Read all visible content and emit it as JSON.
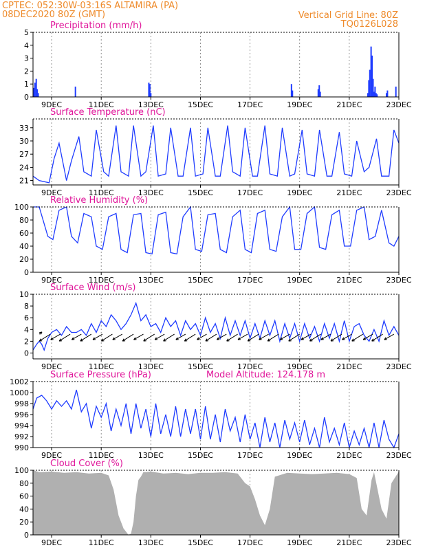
{
  "header": {
    "line1_left": "CPTEC:   052:30W-03:16S   ALTAMIRA (PA)",
    "line2_left": "08DEC2020 80Z (GMT)",
    "line2_right": "Vertical Grid Line: 80Z",
    "line3_right": "TQ0126L028"
  },
  "x_ticks": [
    "9DEC",
    "11DEC",
    "13DEC",
    "15DEC",
    "17DEC",
    "19DEC",
    "21DEC",
    "23DEC"
  ],
  "colors": {
    "header": "#ee8a2a",
    "title": "#e0169a",
    "series": "#1f3cff",
    "cloud": "#b0b0b0"
  },
  "chart_data": [
    {
      "id": "precip",
      "type": "bar",
      "title": "Precipitation (mm/h)",
      "ylim": [
        0,
        5
      ],
      "yticks": [
        0,
        1,
        2,
        3,
        4,
        5
      ],
      "x_unit": "days since 08DEC2020 00Z",
      "xlim": [
        0.25,
        15.0
      ],
      "x": [
        0.29,
        0.33,
        0.38,
        0.42,
        0.46,
        1.96,
        4.92,
        4.96,
        5.0,
        10.67,
        10.71,
        11.75,
        11.79,
        11.83,
        13.75,
        13.79,
        13.83,
        13.88,
        13.92,
        13.96,
        14.0,
        14.04,
        14.08,
        14.12,
        14.5,
        14.54,
        14.88
      ],
      "values": [
        0.7,
        1.1,
        1.4,
        0.6,
        0.3,
        0.8,
        1.1,
        1.0,
        0.3,
        1.0,
        0.5,
        0.6,
        0.9,
        0.4,
        0.3,
        1.3,
        2.1,
        3.9,
        3.2,
        1.4,
        0.4,
        0.8,
        0.3,
        0.2,
        0.3,
        0.5,
        0.8
      ]
    },
    {
      "id": "temp",
      "type": "line",
      "title": "Surface Temperature (nC)",
      "ylim": [
        20,
        35
      ],
      "yticks": [
        21,
        24,
        27,
        30,
        33
      ],
      "x_unit": "days since 08DEC2020 00Z",
      "xlim": [
        0.25,
        15.0
      ],
      "series": [
        {
          "name": "",
          "x": [
            0.25,
            0.5,
            0.9,
            1.1,
            1.3,
            1.6,
            1.8,
            2.1,
            2.3,
            2.6,
            2.8,
            3.1,
            3.3,
            3.6,
            3.8,
            4.1,
            4.3,
            4.6,
            4.8,
            5.1,
            5.3,
            5.6,
            5.8,
            6.1,
            6.3,
            6.6,
            6.8,
            7.1,
            7.3,
            7.6,
            7.8,
            8.1,
            8.3,
            8.6,
            8.8,
            9.1,
            9.3,
            9.6,
            9.8,
            10.1,
            10.3,
            10.6,
            10.8,
            11.1,
            11.3,
            11.6,
            11.8,
            12.1,
            12.3,
            12.6,
            12.8,
            13.1,
            13.3,
            13.6,
            13.8,
            14.1,
            14.3,
            14.6,
            14.8,
            15.0
          ],
          "values": [
            22,
            21,
            20.5,
            26,
            29.5,
            21,
            25.5,
            31,
            23,
            22,
            32.5,
            23,
            22,
            33.5,
            23,
            22,
            33.5,
            22,
            23,
            33.5,
            22,
            22.5,
            33,
            22,
            22,
            33,
            22,
            22.5,
            33,
            22,
            22,
            33.5,
            23,
            22,
            33,
            22,
            22,
            33.5,
            22.5,
            22,
            33,
            22,
            22.5,
            32.5,
            22.5,
            22,
            32.5,
            22,
            22,
            32,
            22.5,
            22,
            30,
            23,
            24,
            30.5,
            22,
            22,
            32.5,
            29.5
          ]
        }
      ]
    },
    {
      "id": "rh",
      "type": "line",
      "title": "Relative Humidity (%)",
      "ylim": [
        0,
        100
      ],
      "yticks": [
        0,
        20,
        40,
        60,
        80,
        100
      ],
      "x_unit": "days since 08DEC2020 00Z",
      "xlim": [
        0.25,
        15.0
      ],
      "series": [
        {
          "name": "",
          "x": [
            0.25,
            0.5,
            0.85,
            1.05,
            1.3,
            1.6,
            1.8,
            2.05,
            2.3,
            2.6,
            2.8,
            3.05,
            3.3,
            3.6,
            3.8,
            4.05,
            4.3,
            4.6,
            4.8,
            5.05,
            5.3,
            5.6,
            5.8,
            6.05,
            6.3,
            6.6,
            6.8,
            7.05,
            7.3,
            7.6,
            7.8,
            8.05,
            8.3,
            8.6,
            8.8,
            9.05,
            9.3,
            9.6,
            9.8,
            10.05,
            10.3,
            10.6,
            10.8,
            11.05,
            11.3,
            11.6,
            11.8,
            12.05,
            12.3,
            12.6,
            12.8,
            13.05,
            13.3,
            13.6,
            13.8,
            14.05,
            14.3,
            14.6,
            14.8,
            15.0
          ],
          "values": [
            100,
            100,
            55,
            50,
            95,
            100,
            55,
            45,
            90,
            85,
            40,
            35,
            85,
            90,
            35,
            30,
            88,
            90,
            30,
            28,
            88,
            92,
            30,
            28,
            85,
            100,
            35,
            32,
            88,
            90,
            35,
            30,
            85,
            95,
            35,
            30,
            90,
            95,
            35,
            32,
            85,
            100,
            35,
            35,
            90,
            100,
            38,
            35,
            88,
            95,
            40,
            40,
            95,
            100,
            50,
            55,
            95,
            45,
            40,
            55
          ]
        }
      ]
    },
    {
      "id": "wind",
      "type": "line",
      "title": "Surface Wind (m/s)",
      "ylim": [
        -1,
        10
      ],
      "yticks": [
        0,
        2,
        4,
        6,
        8,
        10
      ],
      "x_unit": "days since 08DEC2020 00Z",
      "xlim": [
        0.25,
        15.0
      ],
      "series": [
        {
          "name": "",
          "x": [
            0.25,
            0.4,
            0.5,
            0.6,
            0.7,
            0.85,
            1.0,
            1.2,
            1.4,
            1.6,
            1.8,
            2.0,
            2.2,
            2.4,
            2.6,
            2.8,
            3.0,
            3.2,
            3.4,
            3.6,
            3.8,
            4.0,
            4.2,
            4.4,
            4.6,
            4.8,
            5.0,
            5.2,
            5.4,
            5.6,
            5.8,
            6.0,
            6.2,
            6.4,
            6.6,
            6.8,
            7.0,
            7.2,
            7.4,
            7.6,
            7.8,
            8.0,
            8.2,
            8.4,
            8.6,
            8.8,
            9.0,
            9.2,
            9.4,
            9.6,
            9.8,
            10.0,
            10.2,
            10.4,
            10.6,
            10.8,
            11.0,
            11.2,
            11.4,
            11.6,
            11.8,
            12.0,
            12.2,
            12.4,
            12.6,
            12.8,
            13.0,
            13.2,
            13.4,
            13.6,
            13.8,
            14.0,
            14.2,
            14.4,
            14.6,
            14.8,
            15.0
          ],
          "values": [
            0.5,
            1.5,
            2.0,
            1.5,
            0.5,
            2.5,
            3.5,
            4.0,
            3.0,
            4.5,
            3.5,
            3.5,
            4.0,
            3.0,
            5.0,
            3.5,
            5.5,
            4.5,
            6.5,
            5.5,
            4.0,
            5.0,
            6.5,
            8.5,
            5.5,
            6.5,
            4.5,
            5.0,
            3.5,
            6.0,
            4.5,
            5.5,
            3.0,
            5.5,
            4.0,
            5.0,
            3.0,
            6.0,
            3.5,
            5.0,
            2.5,
            6.0,
            3.0,
            5.5,
            3.0,
            5.5,
            2.5,
            5.0,
            2.5,
            5.5,
            3.0,
            5.5,
            2.0,
            5.0,
            2.5,
            5.0,
            2.0,
            5.0,
            2.5,
            4.5,
            2.0,
            5.0,
            2.5,
            5.0,
            2.0,
            5.5,
            2.0,
            4.5,
            5.0,
            3.0,
            2.0,
            4.0,
            2.0,
            5.5,
            3.0,
            4.5,
            3.0
          ]
        }
      ],
      "wind_vectors": {
        "x": [
          0.5,
          0.95,
          1.35,
          1.75,
          2.2,
          2.6,
          3.05,
          3.45,
          3.85,
          4.3,
          4.7,
          5.15,
          5.55,
          5.95,
          6.4,
          6.8,
          7.25,
          7.65,
          8.05,
          8.5,
          8.9,
          9.35,
          9.75,
          10.15,
          10.6,
          11.0,
          11.45,
          11.85,
          12.25,
          12.7,
          13.1,
          13.55,
          13.95,
          14.35,
          14.8
        ],
        "u": [
          1.0,
          -4.0,
          -3.5,
          -4.0,
          -3.5,
          -4.0,
          -3.5,
          -4.0,
          -3.5,
          -4.0,
          -3.5,
          -4.0,
          -3.5,
          -4.0,
          -3.5,
          -4.0,
          -3.5,
          -4.0,
          -3.5,
          -4.0,
          -3.5,
          -4.0,
          -3.5,
          -4.0,
          -3.5,
          -4.0,
          -3.5,
          -4.0,
          -3.5,
          -4.0,
          -3.5,
          -4.0,
          -3.5,
          -4.0,
          -3.5
        ],
        "v": [
          0.8,
          -2.5,
          -2.0,
          -2.5,
          -2.0,
          -2.5,
          -2.0,
          -2.5,
          -2.0,
          -2.5,
          -2.0,
          -2.5,
          -2.0,
          -2.5,
          -2.0,
          -2.5,
          -2.0,
          -2.5,
          -2.0,
          -2.5,
          -2.0,
          -2.5,
          -2.0,
          -2.5,
          -2.0,
          -2.5,
          -2.0,
          -2.5,
          -2.0,
          -2.5,
          -2.0,
          -2.5,
          -2.0,
          -2.5,
          -2.0
        ]
      }
    },
    {
      "id": "pres",
      "type": "line",
      "title": "Surface Pressure (hPa)",
      "annotation": "Model Altitude: 124.178  m",
      "ylim": [
        990,
        1002
      ],
      "yticks": [
        990,
        992,
        994,
        996,
        998,
        1000,
        1002
      ],
      "x_unit": "days since 08DEC2020 00Z",
      "xlim": [
        0.25,
        15.0
      ],
      "series": [
        {
          "name": "",
          "x": [
            0.25,
            0.4,
            0.6,
            0.8,
            1.0,
            1.2,
            1.4,
            1.6,
            1.8,
            2.0,
            2.2,
            2.4,
            2.6,
            2.8,
            3.0,
            3.2,
            3.4,
            3.6,
            3.8,
            4.0,
            4.2,
            4.4,
            4.6,
            4.8,
            5.0,
            5.2,
            5.4,
            5.6,
            5.8,
            6.0,
            6.2,
            6.4,
            6.6,
            6.8,
            7.0,
            7.2,
            7.4,
            7.6,
            7.8,
            8.0,
            8.2,
            8.4,
            8.6,
            8.8,
            9.0,
            9.2,
            9.4,
            9.6,
            9.8,
            10.0,
            10.2,
            10.4,
            10.6,
            10.8,
            11.0,
            11.2,
            11.4,
            11.6,
            11.8,
            12.0,
            12.2,
            12.4,
            12.6,
            12.8,
            13.0,
            13.2,
            13.4,
            13.6,
            13.8,
            14.0,
            14.2,
            14.4,
            14.6,
            14.8,
            15.0
          ],
          "values": [
            997.0,
            999.0,
            999.5,
            998.5,
            997.0,
            998.5,
            997.5,
            998.5,
            997.0,
            1000.5,
            996.5,
            998.0,
            993.5,
            997.5,
            995.5,
            998.0,
            993.0,
            997.0,
            994.0,
            998.0,
            992.5,
            998.0,
            993.5,
            997.0,
            992.0,
            998.0,
            992.5,
            996.0,
            992.0,
            997.5,
            992.0,
            997.0,
            992.5,
            997.0,
            991.5,
            997.5,
            991.5,
            996.0,
            991.0,
            997.0,
            993.0,
            995.5,
            991.0,
            996.0,
            991.5,
            994.5,
            990.0,
            995.5,
            991.0,
            994.5,
            990.0,
            995.0,
            991.5,
            994.5,
            991.0,
            995.0,
            990.5,
            993.5,
            990.0,
            995.5,
            991.0,
            993.5,
            990.5,
            994.5,
            990.0,
            993.0,
            990.5,
            993.5,
            990.0,
            994.5,
            990.0,
            995.0,
            991.5,
            990.0,
            992.5
          ]
        }
      ]
    },
    {
      "id": "cloud",
      "type": "area",
      "title": "Cloud Cover (%)",
      "ylim": [
        0,
        100
      ],
      "yticks": [
        0,
        20,
        40,
        60,
        80,
        100
      ],
      "x_unit": "days since 08DEC2020 00Z",
      "xlim": [
        0.25,
        15.0
      ],
      "series": [
        {
          "name": "",
          "x": [
            0.25,
            0.5,
            1.0,
            1.5,
            2.0,
            2.5,
            3.0,
            3.3,
            3.5,
            3.7,
            3.9,
            4.1,
            4.2,
            4.3,
            4.4,
            4.5,
            4.6,
            4.7,
            4.8,
            5.0,
            5.5,
            6.0,
            6.5,
            7.0,
            7.5,
            8.0,
            8.5,
            8.8,
            9.0,
            9.2,
            9.4,
            9.6,
            9.8,
            10.0,
            10.5,
            11.0,
            11.5,
            12.0,
            12.5,
            13.0,
            13.3,
            13.5,
            13.7,
            13.9,
            14.0,
            14.3,
            14.5,
            14.7,
            15.0
          ],
          "values": [
            100,
            97,
            98,
            96,
            97,
            95,
            96,
            92,
            70,
            30,
            10,
            0,
            2,
            20,
            60,
            85,
            90,
            97,
            97,
            98,
            95,
            96,
            94,
            96,
            96,
            97,
            95,
            80,
            75,
            55,
            30,
            15,
            40,
            90,
            96,
            95,
            94,
            95,
            96,
            94,
            88,
            40,
            30,
            85,
            97,
            40,
            25,
            80,
            98
          ]
        }
      ]
    }
  ]
}
